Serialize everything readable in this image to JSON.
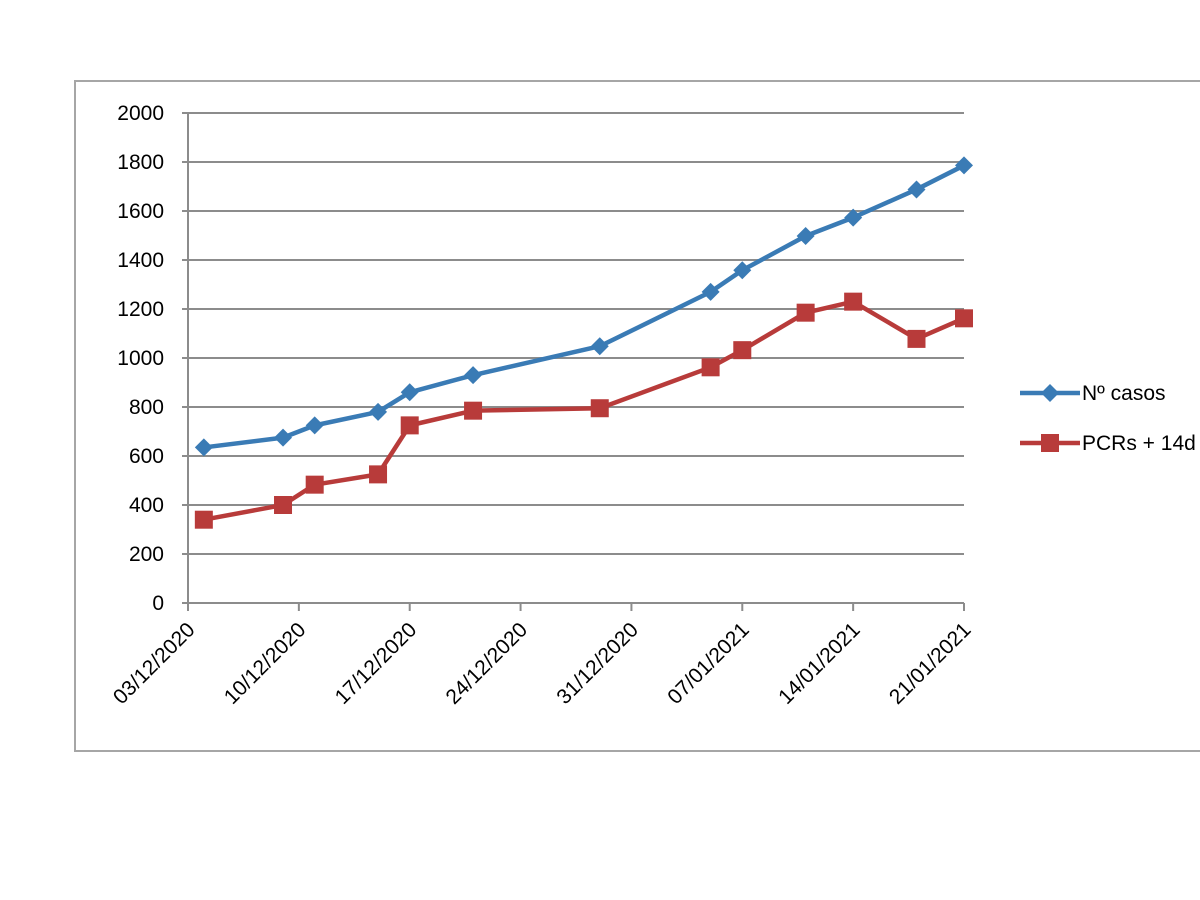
{
  "chart_data": {
    "type": "line",
    "x_axis": {
      "type": "date",
      "ticks": [
        "03/12/2020",
        "10/12/2020",
        "17/12/2020",
        "24/12/2020",
        "31/12/2020",
        "07/01/2021",
        "14/01/2021",
        "21/01/2021"
      ]
    },
    "y_axis": {
      "ylim": [
        0,
        2000
      ],
      "ticks": [
        "0",
        "200",
        "400",
        "600",
        "800",
        "1000",
        "1200",
        "1400",
        "1600",
        "1800",
        "2000"
      ]
    },
    "grid": "horizontal",
    "legend_position": "right",
    "series": [
      {
        "name": "Nº casos",
        "color": "#3a7bb5",
        "marker": "diamond",
        "points": [
          {
            "x": "2020-12-04",
            "y": 635
          },
          {
            "x": "2020-12-09",
            "y": 675
          },
          {
            "x": "2020-12-11",
            "y": 725
          },
          {
            "x": "2020-12-15",
            "y": 780
          },
          {
            "x": "2020-12-17",
            "y": 860
          },
          {
            "x": "2020-12-21",
            "y": 930
          },
          {
            "x": "2020-12-29",
            "y": 1048
          },
          {
            "x": "2021-01-05",
            "y": 1270
          },
          {
            "x": "2021-01-07",
            "y": 1358
          },
          {
            "x": "2021-01-11",
            "y": 1498
          },
          {
            "x": "2021-01-14",
            "y": 1573
          },
          {
            "x": "2021-01-18",
            "y": 1688
          },
          {
            "x": "2021-01-21",
            "y": 1786
          }
        ]
      },
      {
        "name": "PCRs + 14d",
        "color": "#b83b3a",
        "marker": "square",
        "points": [
          {
            "x": "2020-12-04",
            "y": 340
          },
          {
            "x": "2020-12-09",
            "y": 400
          },
          {
            "x": "2020-12-11",
            "y": 483
          },
          {
            "x": "2020-12-15",
            "y": 525
          },
          {
            "x": "2020-12-17",
            "y": 725
          },
          {
            "x": "2020-12-21",
            "y": 785
          },
          {
            "x": "2020-12-29",
            "y": 795
          },
          {
            "x": "2021-01-05",
            "y": 962
          },
          {
            "x": "2021-01-07",
            "y": 1032
          },
          {
            "x": "2021-01-11",
            "y": 1185
          },
          {
            "x": "2021-01-14",
            "y": 1230
          },
          {
            "x": "2021-01-18",
            "y": 1078
          },
          {
            "x": "2021-01-21",
            "y": 1162
          }
        ]
      }
    ]
  }
}
